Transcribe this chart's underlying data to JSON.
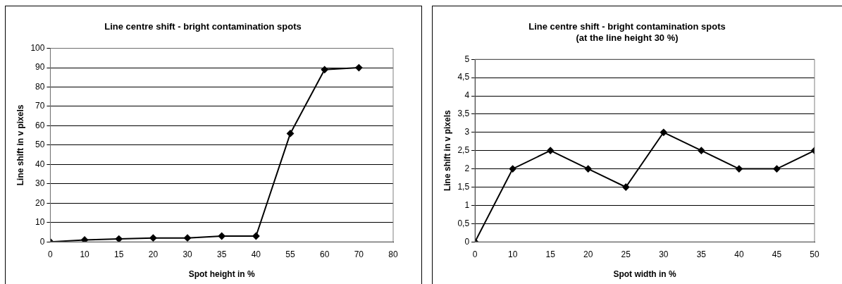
{
  "chart_data": [
    {
      "type": "line",
      "title": "Line centre shift - bright contamination spots",
      "xlabel": "Spot height in %",
      "ylabel": "Line shift in v pixels",
      "categories": [
        "0",
        "10",
        "15",
        "20",
        "30",
        "35",
        "40",
        "55",
        "60",
        "70",
        "80"
      ],
      "series": [
        {
          "color": "#000000",
          "values": [
            0,
            1,
            1.5,
            2,
            2,
            3,
            3,
            56,
            89,
            90,
            null
          ]
        }
      ],
      "ylim": [
        0,
        100
      ],
      "yticks": [
        0,
        10,
        20,
        30,
        40,
        50,
        60,
        70,
        80,
        90,
        100
      ],
      "grid": "y",
      "legend": false,
      "marker": "diamond",
      "line_style": "solid"
    },
    {
      "type": "line",
      "title": "Line centre shift - bright contamination spots",
      "subtitle": "(at the line height 30 %)",
      "xlabel": "Spot width in %",
      "ylabel": "Line shift in v pixels",
      "categories": [
        "0",
        "10",
        "15",
        "20",
        "25",
        "30",
        "35",
        "40",
        "45",
        "50"
      ],
      "series": [
        {
          "color": "#000000",
          "values": [
            0,
            2,
            2.5,
            2,
            1.5,
            3,
            2.5,
            2,
            2,
            2.5
          ]
        }
      ],
      "ylim": [
        0,
        5
      ],
      "yticks": [
        0,
        {
          "value": 0.5,
          "label": "0,5"
        },
        1,
        {
          "value": 1.5,
          "label": "1,5"
        },
        2,
        {
          "value": 2.5,
          "label": "2,5"
        },
        3,
        {
          "value": 3.5,
          "label": "3,5"
        },
        4,
        {
          "value": 4.5,
          "label": "4,5"
        },
        5
      ],
      "grid": "y",
      "legend": false,
      "marker": "diamond",
      "line_style": "solid"
    }
  ]
}
